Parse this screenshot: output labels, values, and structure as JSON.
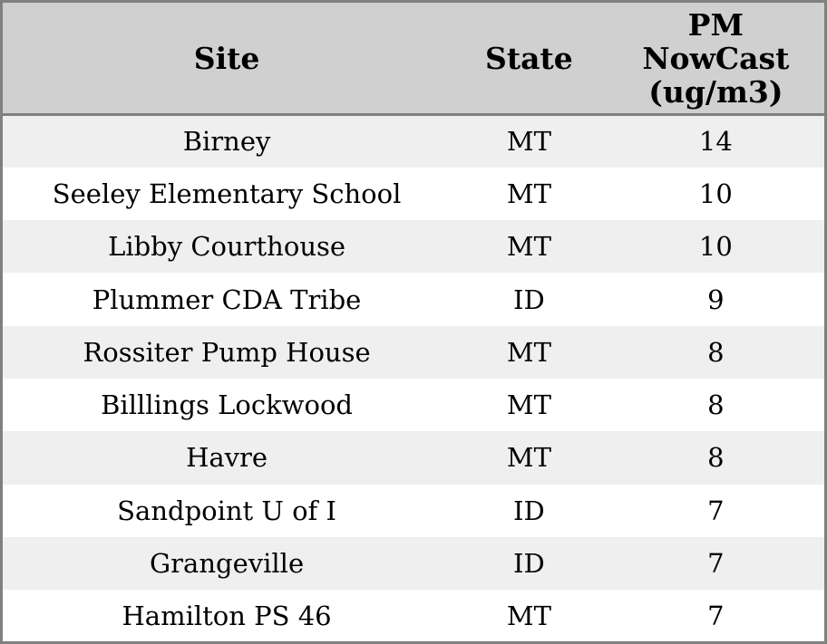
{
  "chart_data": {
    "type": "table",
    "columns": [
      "Site",
      "State",
      "PM NowCast (ug/m3)"
    ],
    "rows": [
      {
        "site": "Birney",
        "state": "MT",
        "pm_nowcast": 14
      },
      {
        "site": "Seeley Elementary School",
        "state": "MT",
        "pm_nowcast": 10
      },
      {
        "site": "Libby Courthouse",
        "state": "MT",
        "pm_nowcast": 10
      },
      {
        "site": "Plummer CDA Tribe",
        "state": "ID",
        "pm_nowcast": 9
      },
      {
        "site": "Rossiter Pump House",
        "state": "MT",
        "pm_nowcast": 8
      },
      {
        "site": "Billlings Lockwood",
        "state": "MT",
        "pm_nowcast": 8
      },
      {
        "site": "Havre",
        "state": "MT",
        "pm_nowcast": 8
      },
      {
        "site": "Sandpoint U of I",
        "state": "ID",
        "pm_nowcast": 7
      },
      {
        "site": "Grangeville",
        "state": "ID",
        "pm_nowcast": 7
      },
      {
        "site": "Hamilton PS 46",
        "state": "MT",
        "pm_nowcast": 7
      }
    ]
  },
  "header": {
    "site": "Site",
    "state": "State",
    "pm_display": "PM\nNowCast\n(ug/m3)"
  },
  "colors": {
    "border": "#808080",
    "header_bg": "#d0d0d0",
    "row_odd_bg": "#efefef",
    "row_even_bg": "#ffffff",
    "text": "#000000"
  }
}
